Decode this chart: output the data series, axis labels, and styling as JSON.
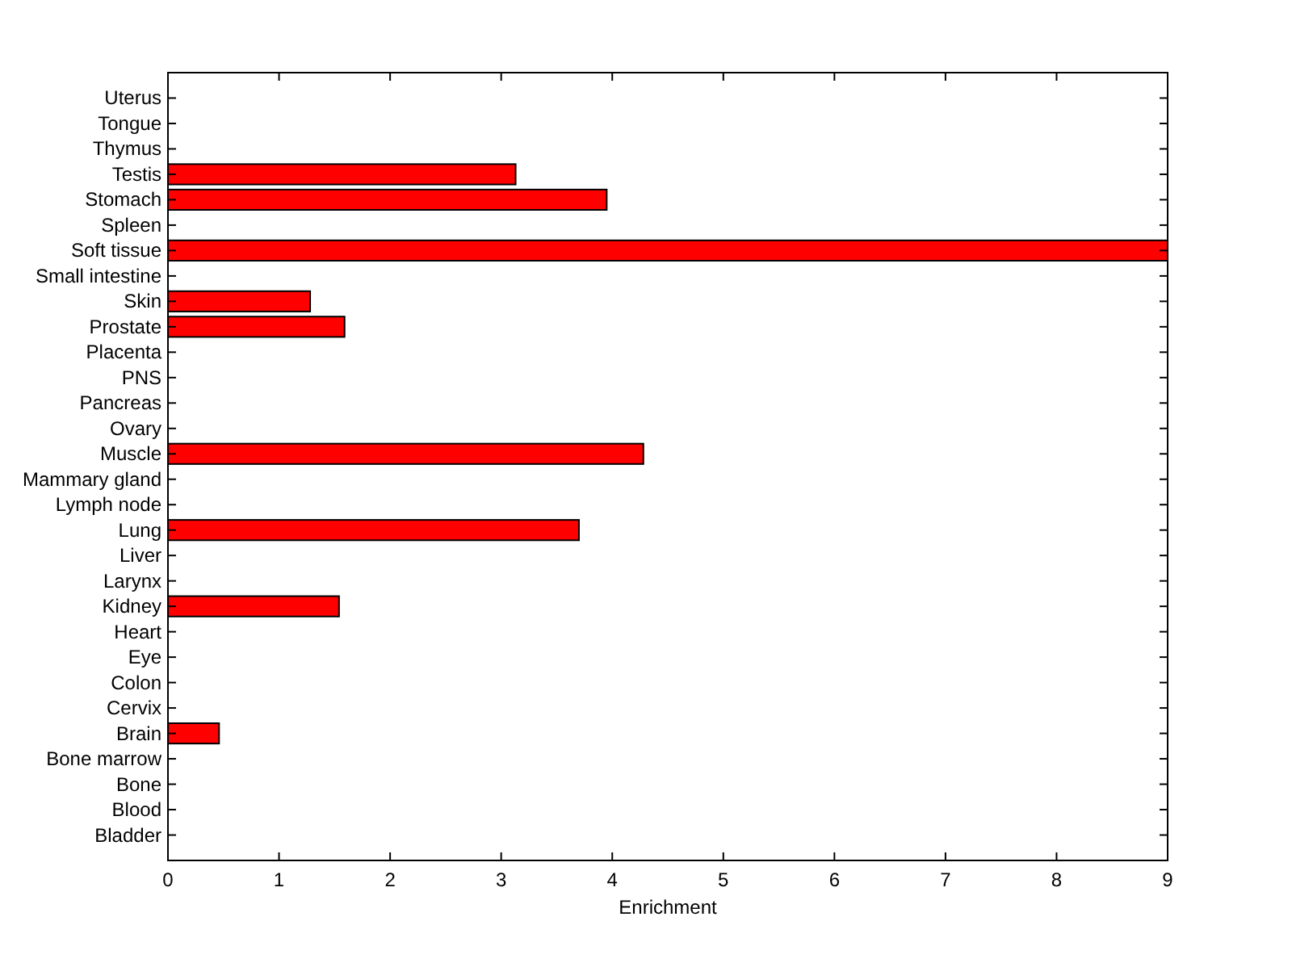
{
  "chart_data": {
    "type": "bar",
    "orientation": "horizontal",
    "xlabel": "Enrichment",
    "categories": [
      "Uterus",
      "Tongue",
      "Thymus",
      "Testis",
      "Stomach",
      "Spleen",
      "Soft tissue",
      "Small intestine",
      "Skin",
      "Prostate",
      "Placenta",
      "PNS",
      "Pancreas",
      "Ovary",
      "Muscle",
      "Mammary gland",
      "Lymph node",
      "Lung",
      "Liver",
      "Larynx",
      "Kidney",
      "Heart",
      "Eye",
      "Colon",
      "Cervix",
      "Brain",
      "Bone marrow",
      "Bone",
      "Blood",
      "Bladder"
    ],
    "values": [
      0,
      0,
      0,
      3.13,
      3.95,
      0,
      9,
      0,
      1.28,
      1.59,
      0,
      0,
      0,
      0,
      4.28,
      0,
      0,
      3.7,
      0,
      0,
      1.54,
      0,
      0,
      0,
      0,
      0.46,
      0,
      0,
      0,
      0
    ],
    "color": "#ff0000",
    "xlim": [
      0,
      9
    ],
    "xticks": [
      0,
      1,
      2,
      3,
      4,
      5,
      6,
      7,
      8,
      9
    ]
  }
}
